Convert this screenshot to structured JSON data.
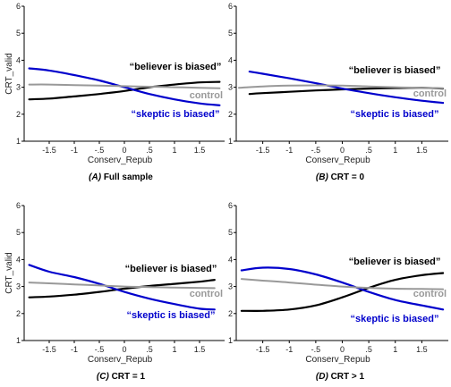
{
  "chart_data": [
    {
      "type": "line",
      "caption_prefix": "(A)",
      "caption_text": "Full sample",
      "xlabel": "Conserv_Repub",
      "ylabel": "CRT_valid",
      "xlim": [
        -2,
        2
      ],
      "ylim": [
        1,
        6
      ],
      "xticks": [
        -1.5,
        -1,
        -0.5,
        0,
        0.5,
        1,
        1.5
      ],
      "xtick_labels": [
        "-1.5",
        "-1",
        "-.5",
        "0",
        ".5",
        "1",
        "1.5"
      ],
      "yticks": [
        1,
        2,
        3,
        4,
        5,
        6
      ],
      "ytick_labels": [
        "1",
        "2",
        "3",
        "4",
        "5",
        "6"
      ],
      "series": [
        {
          "name": "“believer is biased”",
          "color": "#000000",
          "x": [
            -1.9,
            -1.5,
            -1.0,
            -0.5,
            0.0,
            0.5,
            1.0,
            1.5,
            1.9
          ],
          "y": [
            2.55,
            2.58,
            2.66,
            2.75,
            2.86,
            3.0,
            3.1,
            3.18,
            3.2
          ]
        },
        {
          "name": "“skeptic is biased”",
          "color": "#0000cc",
          "x": [
            -1.9,
            -1.5,
            -1.0,
            -0.5,
            0.0,
            0.5,
            1.0,
            1.5,
            1.9
          ],
          "y": [
            3.7,
            3.62,
            3.45,
            3.25,
            3.0,
            2.75,
            2.55,
            2.4,
            2.33
          ]
        },
        {
          "name": "control",
          "color": "#999999",
          "x": [
            -1.9,
            -1.5,
            -1.0,
            -0.5,
            0.0,
            0.5,
            1.0,
            1.5,
            1.9
          ],
          "y": [
            3.1,
            3.1,
            3.08,
            3.06,
            3.04,
            3.02,
            3.0,
            2.98,
            2.96
          ]
        }
      ]
    },
    {
      "type": "line",
      "caption_prefix": "(B)",
      "caption_text": "CRT = 0",
      "xlabel": "Conserv_Repub",
      "ylabel": "",
      "xlim": [
        -2,
        2
      ],
      "ylim": [
        1,
        6
      ],
      "xticks": [
        -1.5,
        -1,
        -0.5,
        0,
        0.5,
        1,
        1.5
      ],
      "xtick_labels": [
        "-1.5",
        "-1",
        "-.5",
        "0",
        ".5",
        "1",
        "1.5"
      ],
      "yticks": [
        1,
        2,
        3,
        4,
        5,
        6
      ],
      "ytick_labels": [
        "1",
        "2",
        "3",
        "4",
        "5",
        "6"
      ],
      "series": [
        {
          "name": "“believer is biased”",
          "color": "#000000",
          "x": [
            -1.75,
            -1.5,
            -1.0,
            -0.5,
            0.0,
            0.5,
            1.0,
            1.5,
            1.9
          ],
          "y": [
            2.75,
            2.78,
            2.83,
            2.88,
            2.92,
            2.95,
            2.97,
            2.98,
            2.95
          ]
        },
        {
          "name": "“skeptic is biased”",
          "color": "#0000cc",
          "x": [
            -1.75,
            -1.5,
            -1.0,
            -0.5,
            0.0,
            0.5,
            1.0,
            1.5,
            1.9
          ],
          "y": [
            3.58,
            3.5,
            3.33,
            3.15,
            2.95,
            2.78,
            2.63,
            2.5,
            2.42
          ]
        },
        {
          "name": "control",
          "color": "#999999",
          "x": [
            -1.95,
            -1.5,
            -1.0,
            -0.5,
            0.0,
            0.5,
            1.0,
            1.5,
            1.9
          ],
          "y": [
            2.98,
            3.03,
            3.06,
            3.07,
            3.06,
            3.03,
            3.0,
            2.98,
            2.96
          ]
        }
      ]
    },
    {
      "type": "line",
      "caption_prefix": "(C)",
      "caption_text": "CRT = 1",
      "xlabel": "Conserv_Repub",
      "ylabel": "CRT_valid",
      "xlim": [
        -2,
        2
      ],
      "ylim": [
        1,
        6
      ],
      "xticks": [
        -1.5,
        -1,
        -0.5,
        0,
        0.5,
        1,
        1.5
      ],
      "xtick_labels": [
        "-1.5",
        "-1",
        "-.5",
        "0",
        ".5",
        "1",
        "1.5"
      ],
      "yticks": [
        1,
        2,
        3,
        4,
        5,
        6
      ],
      "ytick_labels": [
        "1",
        "2",
        "3",
        "4",
        "5",
        "6"
      ],
      "series": [
        {
          "name": "“believer is biased”",
          "color": "#000000",
          "x": [
            -1.9,
            -1.5,
            -1.0,
            -0.5,
            0.0,
            0.5,
            1.0,
            1.5,
            1.8
          ],
          "y": [
            2.6,
            2.63,
            2.7,
            2.8,
            2.92,
            3.02,
            3.1,
            3.18,
            3.25
          ]
        },
        {
          "name": "“skeptic is biased”",
          "color": "#0000cc",
          "x": [
            -1.9,
            -1.5,
            -1.0,
            -0.5,
            0.0,
            0.5,
            1.0,
            1.5,
            1.8
          ],
          "y": [
            3.8,
            3.55,
            3.35,
            3.1,
            2.8,
            2.55,
            2.35,
            2.18,
            2.15
          ]
        },
        {
          "name": "control",
          "color": "#999999",
          "x": [
            -1.9,
            -1.5,
            -1.0,
            -0.5,
            0.0,
            0.5,
            1.0,
            1.5,
            1.8
          ],
          "y": [
            3.15,
            3.12,
            3.08,
            3.04,
            3.0,
            2.98,
            2.96,
            2.95,
            2.94
          ]
        }
      ]
    },
    {
      "type": "line",
      "caption_prefix": "(D)",
      "caption_text": "CRT > 1",
      "xlabel": "Conserv_Repub",
      "ylabel": "",
      "xlim": [
        -2,
        2
      ],
      "ylim": [
        1,
        6
      ],
      "xticks": [
        -1.5,
        -1,
        -0.5,
        0,
        0.5,
        1,
        1.5
      ],
      "xtick_labels": [
        "-1.5",
        "-1",
        "-.5",
        "0",
        ".5",
        "1",
        "1.5"
      ],
      "yticks": [
        1,
        2,
        3,
        4,
        5,
        6
      ],
      "ytick_labels": [
        "1",
        "2",
        "3",
        "4",
        "5",
        "6"
      ],
      "series": [
        {
          "name": "“believer is biased”",
          "color": "#000000",
          "x": [
            -1.9,
            -1.5,
            -1.0,
            -0.5,
            0.0,
            0.5,
            1.0,
            1.5,
            1.9
          ],
          "y": [
            2.1,
            2.1,
            2.15,
            2.3,
            2.6,
            2.95,
            3.25,
            3.42,
            3.5
          ]
        },
        {
          "name": "“skeptic is biased”",
          "color": "#0000cc",
          "x": [
            -1.9,
            -1.5,
            -1.0,
            -0.5,
            0.0,
            0.5,
            1.0,
            1.5,
            1.9
          ],
          "y": [
            3.6,
            3.7,
            3.65,
            3.45,
            3.15,
            2.8,
            2.5,
            2.3,
            2.15
          ]
        },
        {
          "name": "control",
          "color": "#999999",
          "x": [
            -1.9,
            -1.5,
            -1.0,
            -0.5,
            0.0,
            0.5,
            1.0,
            1.5,
            1.9
          ],
          "y": [
            3.28,
            3.22,
            3.15,
            3.07,
            3.0,
            2.95,
            2.92,
            2.91,
            2.9
          ]
        }
      ]
    }
  ]
}
